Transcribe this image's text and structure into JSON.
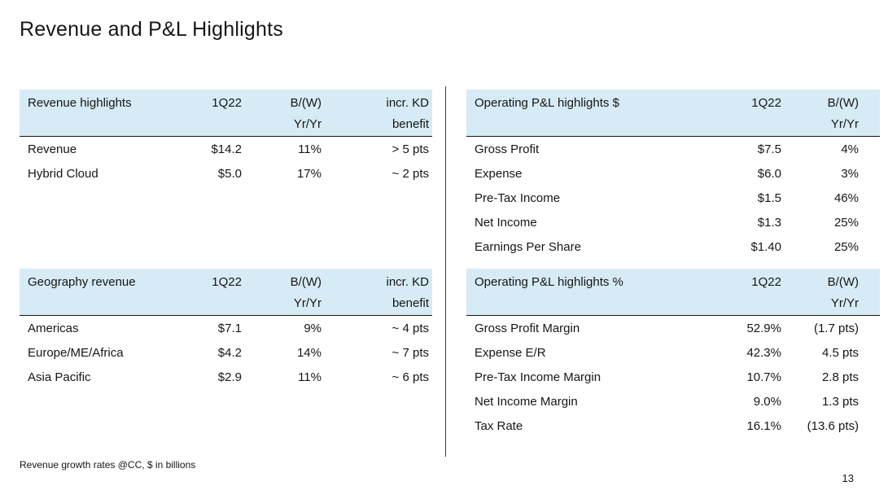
{
  "slide": {
    "title": "Revenue and P&L Highlights",
    "footnote": "Revenue growth rates @CC, $ in billions",
    "page_number": "13"
  },
  "colors": {
    "header_bg": "#d6ebf5",
    "text": "#161616",
    "divider": "#3d3d3d",
    "background": "#ffffff"
  },
  "tables": {
    "revenue_highlights": {
      "title": "Revenue highlights",
      "columns": [
        {
          "l1": "1Q22",
          "l2": ""
        },
        {
          "l1": "B/(W)",
          "l2": "Yr/Yr"
        },
        {
          "l1": "incr. KD",
          "l2": "benefit"
        }
      ],
      "rows": [
        [
          "Revenue",
          "$14.2",
          "11%",
          "> 5 pts"
        ],
        [
          "Hybrid Cloud",
          "$5.0",
          "17%",
          "~ 2 pts"
        ]
      ]
    },
    "geography_revenue": {
      "title": "Geography revenue",
      "columns": [
        {
          "l1": "1Q22",
          "l2": ""
        },
        {
          "l1": "B/(W)",
          "l2": "Yr/Yr"
        },
        {
          "l1": "incr. KD",
          "l2": "benefit"
        }
      ],
      "rows": [
        [
          "Americas",
          "$7.1",
          "9%",
          "~ 4 pts"
        ],
        [
          "Europe/ME/Africa",
          "$4.2",
          "14%",
          "~ 7 pts"
        ],
        [
          "Asia Pacific",
          "$2.9",
          "11%",
          "~ 6 pts"
        ]
      ]
    },
    "operating_pl_dollars": {
      "title": "Operating P&L highlights $",
      "columns": [
        {
          "l1": "1Q22",
          "l2": ""
        },
        {
          "l1": "B/(W)",
          "l2": "Yr/Yr"
        }
      ],
      "rows": [
        [
          "Gross Profit",
          "$7.5",
          "4%"
        ],
        [
          "Expense",
          "$6.0",
          "3%"
        ],
        [
          "Pre-Tax Income",
          "$1.5",
          "46%"
        ],
        [
          "Net Income",
          "$1.3",
          "25%"
        ],
        [
          "Earnings Per Share",
          "$1.40",
          "25%"
        ]
      ]
    },
    "operating_pl_percent": {
      "title": "Operating P&L highlights %",
      "columns": [
        {
          "l1": "1Q22",
          "l2": ""
        },
        {
          "l1": "B/(W)",
          "l2": "Yr/Yr"
        }
      ],
      "rows": [
        [
          "Gross Profit Margin",
          "52.9%",
          "(1.7 pts)"
        ],
        [
          "Expense E/R",
          "42.3%",
          "4.5 pts"
        ],
        [
          "Pre-Tax Income Margin",
          "10.7%",
          "2.8 pts"
        ],
        [
          "Net Income Margin",
          "9.0%",
          "1.3 pts"
        ],
        [
          "Tax Rate",
          "16.1%",
          "(13.6 pts)"
        ]
      ]
    }
  }
}
